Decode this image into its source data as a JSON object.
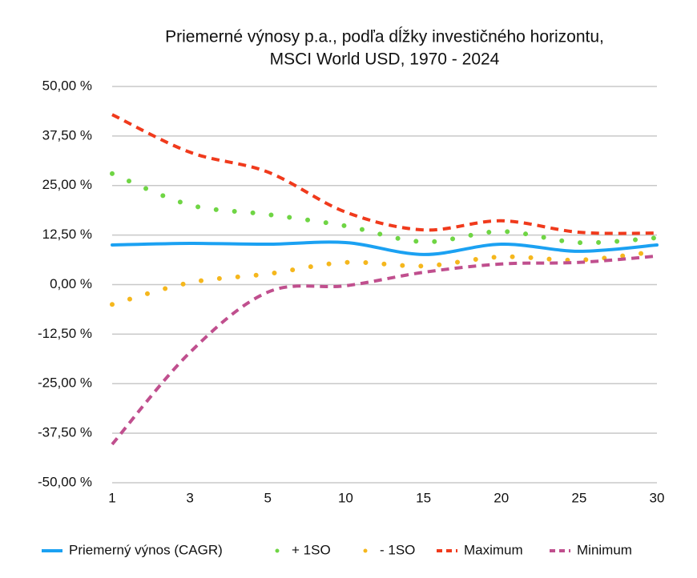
{
  "chart_data": {
    "type": "line",
    "title": [
      "Priemerné výnosy p.a., podľa dĺžky investičného horizontu,",
      "MSCI World USD, 1970 - 2024"
    ],
    "categories": [
      "1",
      "3",
      "5",
      "10",
      "15",
      "20",
      "25",
      "30"
    ],
    "series": [
      {
        "name": "Priemerný výnos (CAGR)",
        "color": "#1ba1f2",
        "style": "solid",
        "values": [
          10.0,
          10.4,
          10.2,
          10.6,
          7.6,
          10.2,
          8.4,
          10.0
        ]
      },
      {
        "name": "+ 1SO",
        "color": "#6fd544",
        "style": "dotted",
        "values": [
          28.0,
          20.1,
          17.7,
          14.8,
          10.8,
          13.4,
          10.6,
          11.8
        ]
      },
      {
        "name": "- 1SO",
        "color": "#f5b71d",
        "style": "dotted",
        "values": [
          -5.0,
          0.5,
          2.7,
          5.6,
          4.7,
          7.0,
          6.2,
          8.4
        ]
      },
      {
        "name": "Maximum",
        "color": "#f03a1c",
        "style": "dashed",
        "values": [
          42.9,
          33.4,
          28.4,
          18.3,
          13.8,
          16.1,
          13.2,
          13.0
        ]
      },
      {
        "name": "Minimum",
        "color": "#c04f8e",
        "style": "dashed",
        "values": [
          -40.3,
          -17.1,
          -1.9,
          -0.3,
          3.1,
          5.2,
          5.6,
          7.2
        ]
      }
    ],
    "ylim": [
      -50,
      50
    ],
    "yticks": [
      {
        "value": 50,
        "label": "50,00 %"
      },
      {
        "value": 37.5,
        "label": "37,50 %"
      },
      {
        "value": 25,
        "label": "25,00 %"
      },
      {
        "value": 12.5,
        "label": "12,50 %"
      },
      {
        "value": 0,
        "label": "0,00 %"
      },
      {
        "value": -12.5,
        "label": "-12,50 %"
      },
      {
        "value": -25,
        "label": "-25,00 %"
      },
      {
        "value": -37.5,
        "label": "-37,50 %"
      },
      {
        "value": -50,
        "label": "-50,00 %"
      }
    ],
    "grid": true,
    "legend": "bottom"
  }
}
